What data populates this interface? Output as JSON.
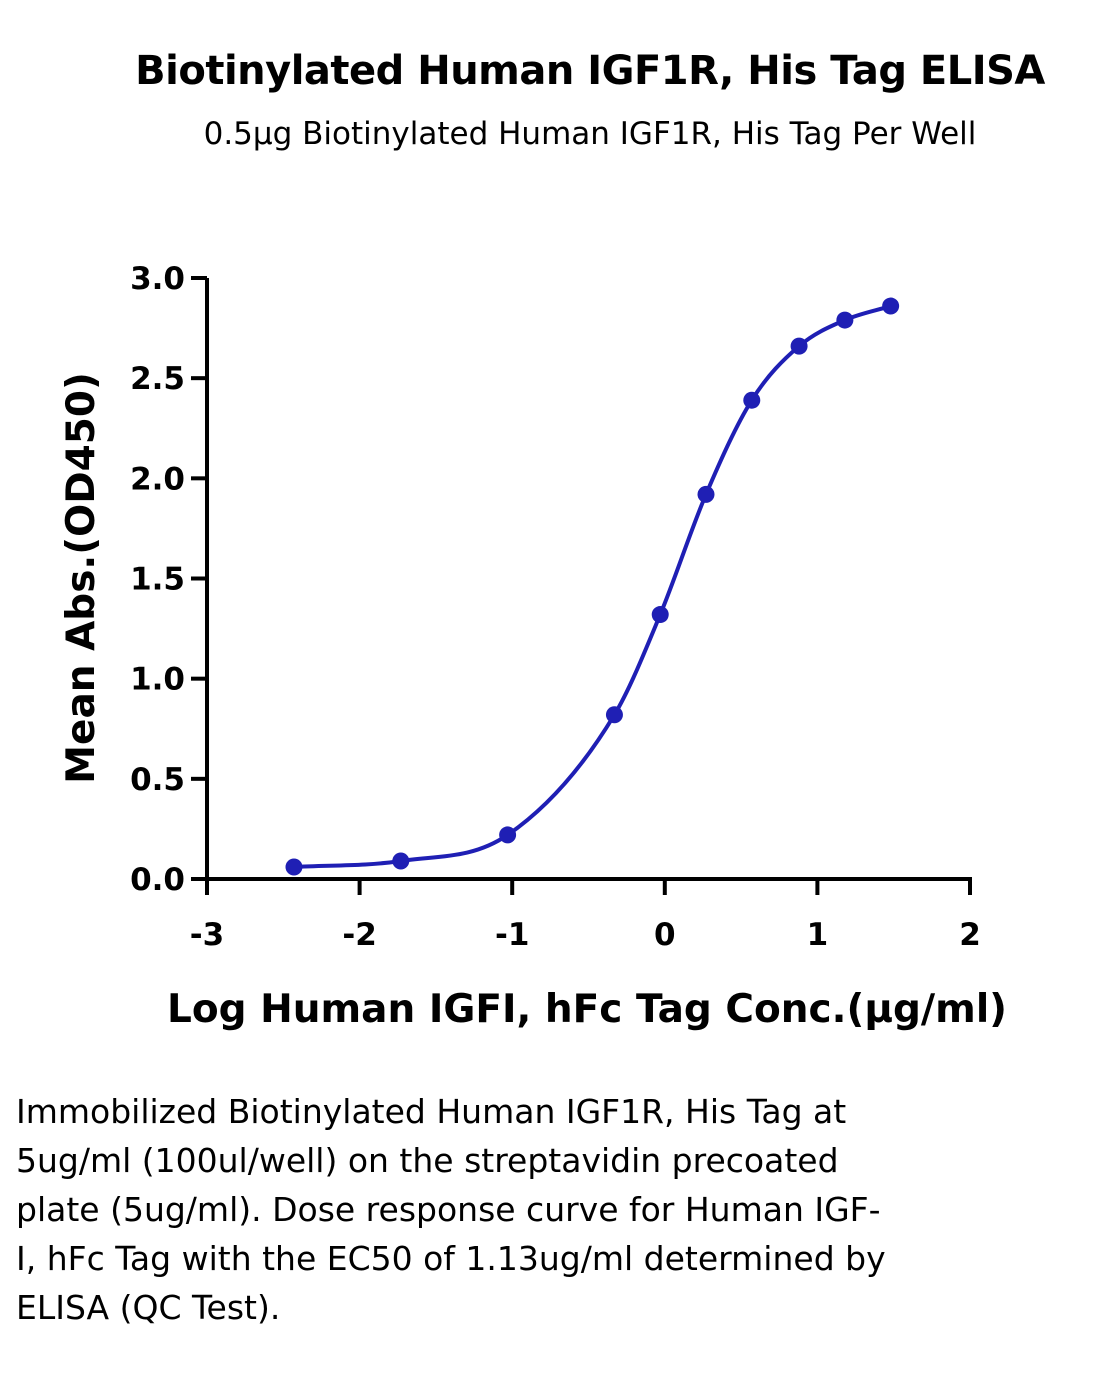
{
  "chart_data": {
    "type": "line",
    "title": "Biotinylated Human IGF1R, His Tag ELISA",
    "subtitle": "0.5μg Biotinylated Human IGF1R, His Tag Per Well",
    "xlabel": "Log Human IGFI, hFc Tag Conc.(μg/ml)",
    "ylabel": "Mean Abs.(OD450)",
    "xlim": [
      -3,
      2
    ],
    "ylim": [
      0,
      3
    ],
    "x_ticks": [
      "-3",
      "-2",
      "-1",
      "0",
      "1",
      "2"
    ],
    "y_ticks": [
      "0.0",
      "0.5",
      "1.0",
      "1.5",
      "2.0",
      "2.5",
      "3.0"
    ],
    "grid": false,
    "legend": "none",
    "series": [
      {
        "color": "#1f1fb4",
        "marker": "circle",
        "x": [
          -2.43,
          -1.73,
          -1.03,
          -0.33,
          -0.03,
          0.27,
          0.57,
          0.88,
          1.18,
          1.48
        ],
        "y": [
          0.06,
          0.09,
          0.22,
          0.82,
          1.32,
          1.92,
          2.39,
          2.66,
          2.79,
          2.86
        ]
      }
    ]
  },
  "caption": "Immobilized Biotinylated Human IGF1R, His Tag at 5ug/ml (100ul/well) on the streptavidin precoated plate (5ug/ml). Dose response curve for Human IGF-I, hFc Tag with the EC50 of 1.13ug/ml determined by ELISA (QC Test)."
}
